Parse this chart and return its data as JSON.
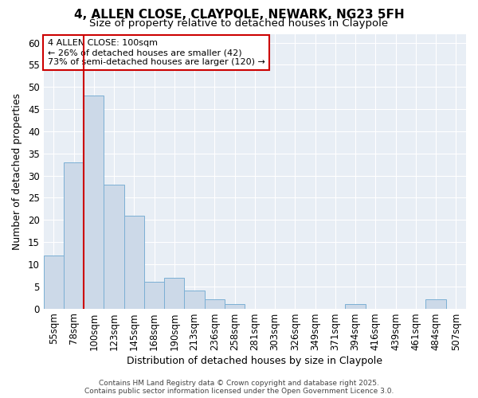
{
  "title1": "4, ALLEN CLOSE, CLAYPOLE, NEWARK, NG23 5FH",
  "title2": "Size of property relative to detached houses in Claypole",
  "xlabel": "Distribution of detached houses by size in Claypole",
  "ylabel": "Number of detached properties",
  "categories": [
    "55sqm",
    "78sqm",
    "100sqm",
    "123sqm",
    "145sqm",
    "168sqm",
    "190sqm",
    "213sqm",
    "236sqm",
    "258sqm",
    "281sqm",
    "303sqm",
    "326sqm",
    "349sqm",
    "371sqm",
    "394sqm",
    "416sqm",
    "439sqm",
    "461sqm",
    "484sqm",
    "507sqm"
  ],
  "values": [
    12,
    33,
    48,
    28,
    21,
    6,
    7,
    4,
    2,
    1,
    0,
    0,
    0,
    0,
    0,
    1,
    0,
    0,
    0,
    2,
    0
  ],
  "bar_color": "#ccd9e8",
  "bar_edge_color": "#7bafd4",
  "highlight_index": 2,
  "highlight_line_color": "#cc0000",
  "ylim": [
    0,
    62
  ],
  "yticks": [
    0,
    5,
    10,
    15,
    20,
    25,
    30,
    35,
    40,
    45,
    50,
    55,
    60
  ],
  "annotation_text": "4 ALLEN CLOSE: 100sqm\n← 26% of detached houses are smaller (42)\n73% of semi-detached houses are larger (120) →",
  "annotation_box_color": "#ffffff",
  "annotation_box_edge": "#cc0000",
  "footer": "Contains HM Land Registry data © Crown copyright and database right 2025.\nContains public sector information licensed under the Open Government Licence 3.0.",
  "bg_color": "#ffffff",
  "plot_bg_color": "#e8eef5",
  "grid_color": "#ffffff",
  "title_fontsize": 11,
  "subtitle_fontsize": 9.5,
  "axis_label_fontsize": 9,
  "tick_fontsize": 8.5,
  "annotation_fontsize": 8,
  "footer_fontsize": 6.5
}
